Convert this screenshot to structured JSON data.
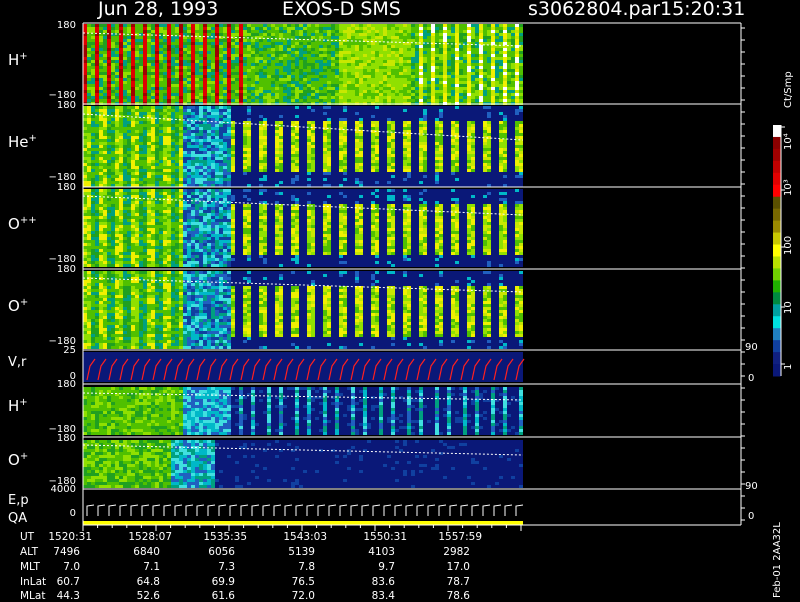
{
  "header": {
    "date": "Jun 28, 1993",
    "mission": "EXOS-D SMS",
    "file": "s3062804.par",
    "time": "15:20:31"
  },
  "panels": [
    {
      "label_base": "H",
      "label_sup": "+",
      "top_tick": "180",
      "bottom_tick": "−180"
    },
    {
      "label_base": "He",
      "label_sup": "+",
      "top_tick": "180",
      "bottom_tick": "−180"
    },
    {
      "label_base": "O",
      "label_sup": "++",
      "top_tick": "180",
      "bottom_tick": "−180"
    },
    {
      "label_base": "O",
      "label_sup": "+",
      "top_tick": "180",
      "bottom_tick": "−180"
    },
    {
      "label_base": "V,r",
      "label_sup": "",
      "top_tick": "25",
      "bottom_tick": "0",
      "right_top": "90",
      "right_bottom": "0"
    },
    {
      "label_base": "H",
      "label_sup": "+",
      "top_tick": "180",
      "bottom_tick": "−180"
    },
    {
      "label_base": "O",
      "label_sup": "+",
      "top_tick": "180",
      "bottom_tick": "−180"
    },
    {
      "label_base": "E,p",
      "label_line2": "QA",
      "top_tick": "4000",
      "bottom_tick": "0",
      "right_top": "90",
      "right_bottom": "0"
    }
  ],
  "colorbar": {
    "unit": "Ct/Smp",
    "ticks": [
      "10⁴",
      "10³",
      "100",
      "10",
      "1"
    ],
    "colors": [
      "#ffffff",
      "#8b0000",
      "#a00000",
      "#c00000",
      "#e00000",
      "#ff0000",
      "#5a5000",
      "#786800",
      "#9a8a00",
      "#c8c800",
      "#ffff00",
      "#b8e000",
      "#70d000",
      "#20b000",
      "#008a40",
      "#00a0a0",
      "#00e0e0",
      "#2080c0",
      "#1040a0",
      "#102080",
      "#0a1878"
    ]
  },
  "time_table": {
    "row_labels": [
      "UT",
      "ALT",
      "MLT",
      "InLat",
      "MLat"
    ],
    "columns": [
      [
        "1520:31",
        "7496",
        "7.0",
        "60.7",
        "44.3"
      ],
      [
        "1528:07",
        "6840",
        "7.1",
        "64.8",
        "52.6"
      ],
      [
        "1535:35",
        "6056",
        "7.3",
        "69.9",
        "61.6"
      ],
      [
        "1543:03",
        "5139",
        "7.8",
        "76.5",
        "72.0"
      ],
      [
        "1550:31",
        "4103",
        "9.7",
        "83.6",
        "83.4"
      ],
      [
        "1557:59",
        "2982",
        "17.0",
        "78.7",
        "78.6"
      ]
    ]
  },
  "footer_id": "Feb-01 2AA32L",
  "chart_data": {
    "type": "heatmap",
    "title": "Jun 28, 1993   EXOS-D SMS",
    "x_ticks": [
      "1520:31",
      "1528:07",
      "1535:35",
      "1543:03",
      "1550:31",
      "1557:59"
    ],
    "colorbar_range": [
      1,
      10000
    ],
    "colorbar_scale": "log",
    "colorbar_unit": "Ct/Smp",
    "series": [
      {
        "name": "H+",
        "ylim": [
          -180,
          180
        ]
      },
      {
        "name": "He+",
        "ylim": [
          -180,
          180
        ]
      },
      {
        "name": "O++",
        "ylim": [
          -180,
          180
        ]
      },
      {
        "name": "O+",
        "ylim": [
          -180,
          180
        ]
      },
      {
        "name": "V,r",
        "ylim": [
          0,
          25
        ]
      },
      {
        "name": "H+",
        "ylim": [
          -180,
          180
        ]
      },
      {
        "name": "O+",
        "ylim": [
          -180,
          180
        ]
      },
      {
        "name": "E,p",
        "ylim": [
          0,
          4000
        ]
      }
    ]
  }
}
